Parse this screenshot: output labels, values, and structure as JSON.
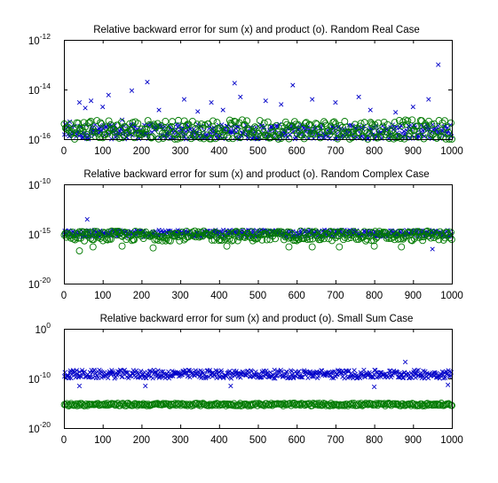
{
  "colors": {
    "sum_marker": "#0000c8",
    "product_marker": "#007a00",
    "axes": "#000000",
    "background": "#ffffff"
  },
  "chart_data": [
    {
      "type": "scatter",
      "title": "Relative backward error for sum (x) and product (o). Random Real Case",
      "xlabel": "",
      "ylabel": "",
      "xlim": [
        0,
        1000
      ],
      "yscale": "log",
      "ylim": [
        1e-16,
        1e-12
      ],
      "xticks": [
        "0",
        "100",
        "200",
        "300",
        "400",
        "500",
        "600",
        "700",
        "800",
        "900",
        "1000"
      ],
      "yticks": [
        {
          "base": "10",
          "exp": "-12",
          "value": 1e-12
        },
        {
          "base": "10",
          "exp": "-14",
          "value": 1e-14
        },
        {
          "base": "10",
          "exp": "-16",
          "value": 1e-16
        }
      ],
      "grid": false,
      "legend": "none",
      "series": [
        {
          "marker": "x",
          "color": "#0000c8",
          "n_points": 1000,
          "typical_range": [
            1e-16,
            4e-16
          ],
          "outliers": [
            {
              "x": 15,
              "y": 5e-16
            },
            {
              "x": 40,
              "y": 3e-15
            },
            {
              "x": 55,
              "y": 1.8e-15
            },
            {
              "x": 70,
              "y": 3.5e-15
            },
            {
              "x": 100,
              "y": 2e-15
            },
            {
              "x": 115,
              "y": 6e-15
            },
            {
              "x": 150,
              "y": 6e-16
            },
            {
              "x": 175,
              "y": 9e-15
            },
            {
              "x": 215,
              "y": 2e-14
            },
            {
              "x": 245,
              "y": 1.5e-15
            },
            {
              "x": 310,
              "y": 4e-15
            },
            {
              "x": 345,
              "y": 1.3e-15
            },
            {
              "x": 380,
              "y": 3e-15
            },
            {
              "x": 410,
              "y": 1.5e-15
            },
            {
              "x": 440,
              "y": 1.8e-14
            },
            {
              "x": 455,
              "y": 5e-15
            },
            {
              "x": 520,
              "y": 3.5e-15
            },
            {
              "x": 560,
              "y": 2.5e-15
            },
            {
              "x": 590,
              "y": 1.5e-14
            },
            {
              "x": 640,
              "y": 4e-15
            },
            {
              "x": 700,
              "y": 3e-15
            },
            {
              "x": 760,
              "y": 5e-15
            },
            {
              "x": 790,
              "y": 1.5e-15
            },
            {
              "x": 855,
              "y": 1.2e-15
            },
            {
              "x": 900,
              "y": 2e-15
            },
            {
              "x": 940,
              "y": 4e-15
            },
            {
              "x": 965,
              "y": 1e-13
            }
          ]
        },
        {
          "marker": "o",
          "color": "#007a00",
          "n_points": 1000,
          "typical_range": [
            1e-16,
            6e-16
          ]
        }
      ]
    },
    {
      "type": "scatter",
      "title": "Relative backward error for sum (x) and product (o). Random Complex Case",
      "xlabel": "",
      "ylabel": "",
      "xlim": [
        0,
        1000
      ],
      "yscale": "log",
      "ylim": [
        1e-20,
        1e-10
      ],
      "xticks": [
        "0",
        "100",
        "200",
        "300",
        "400",
        "500",
        "600",
        "700",
        "800",
        "900",
        "1000"
      ],
      "yticks": [
        {
          "base": "10",
          "exp": "-10",
          "value": 1e-10
        },
        {
          "base": "10",
          "exp": "-15",
          "value": 1e-15
        },
        {
          "base": "10",
          "exp": "-20",
          "value": 1e-20
        }
      ],
      "grid": false,
      "legend": "none",
      "series": [
        {
          "marker": "x",
          "color": "#0000c8",
          "n_points": 1000,
          "typical_range": [
            5e-16,
            2.5e-15
          ],
          "outliers": [
            {
              "x": 60,
              "y": 3e-14
            },
            {
              "x": 880,
              "y": 1e-15
            },
            {
              "x": 950,
              "y": 3e-17
            }
          ]
        },
        {
          "marker": "o",
          "color": "#007a00",
          "n_points": 1000,
          "typical_range": [
            2e-16,
            2e-15
          ],
          "outliers": [
            {
              "x": 40,
              "y": 2e-17
            },
            {
              "x": 75,
              "y": 5e-17
            },
            {
              "x": 150,
              "y": 6e-17
            },
            {
              "x": 230,
              "y": 4e-17
            },
            {
              "x": 420,
              "y": 6e-17
            },
            {
              "x": 580,
              "y": 5e-17
            },
            {
              "x": 640,
              "y": 5e-17
            },
            {
              "x": 710,
              "y": 5e-17
            },
            {
              "x": 800,
              "y": 6e-17
            },
            {
              "x": 870,
              "y": 5e-17
            }
          ]
        }
      ]
    },
    {
      "type": "scatter",
      "title": "Relative backward error for sum (x) and product (o). Small Sum Case",
      "xlabel": "",
      "ylabel": "",
      "xlim": [
        0,
        1000
      ],
      "yscale": "log",
      "ylim": [
        1e-20,
        1
      ],
      "xticks": [
        "0",
        "100",
        "200",
        "300",
        "400",
        "500",
        "600",
        "700",
        "800",
        "900",
        "1000"
      ],
      "yticks": [
        {
          "base": "10",
          "exp": "0",
          "value": 1
        },
        {
          "base": "10",
          "exp": "-10",
          "value": 1e-10
        },
        {
          "base": "10",
          "exp": "-20",
          "value": 1e-20
        }
      ],
      "grid": false,
      "legend": "none",
      "series": [
        {
          "marker": "x",
          "color": "#0000c8",
          "n_points": 1000,
          "typical_range": [
            1e-10,
            5e-09
          ],
          "outliers": [
            {
              "x": 880,
              "y": 2e-07
            },
            {
              "x": 40,
              "y": 3e-12
            },
            {
              "x": 210,
              "y": 3e-12
            },
            {
              "x": 430,
              "y": 3e-12
            },
            {
              "x": 800,
              "y": 2e-12
            },
            {
              "x": 990,
              "y": 5e-12
            }
          ]
        },
        {
          "marker": "o",
          "color": "#007a00",
          "n_points": 1000,
          "typical_range": [
            3e-16,
            1e-15
          ]
        }
      ]
    }
  ]
}
